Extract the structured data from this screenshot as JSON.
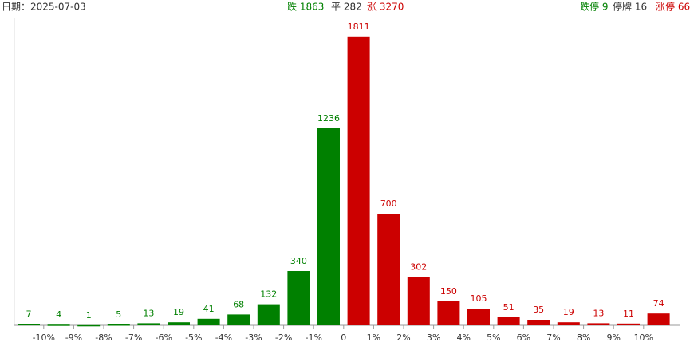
{
  "chart_data": {
    "type": "bar",
    "header": {
      "date": "日期：2025-07-03",
      "down": "跌 1863",
      "flat": "平 282",
      "up": "涨 3270",
      "limit_down": "跌停 9",
      "suspended": "停牌 16",
      "limit_up": "涨停 66"
    },
    "values": [
      7,
      4,
      1,
      5,
      13,
      19,
      41,
      68,
      132,
      340,
      1236,
      1811,
      700,
      302,
      150,
      105,
      51,
      35,
      19,
      13,
      11,
      74
    ],
    "colors": [
      "#008000",
      "#008000",
      "#008000",
      "#008000",
      "#008000",
      "#008000",
      "#008000",
      "#008000",
      "#008000",
      "#008000",
      "#008000",
      "#cc0000",
      "#cc0000",
      "#cc0000",
      "#cc0000",
      "#cc0000",
      "#cc0000",
      "#cc0000",
      "#cc0000",
      "#cc0000",
      "#cc0000",
      "#cc0000"
    ],
    "xticks": [
      "-10%",
      "-9%",
      "-8%",
      "-7%",
      "-6%",
      "-5%",
      "-4%",
      "-3%",
      "-2%",
      "-1%",
      "0",
      "1%",
      "2%",
      "3%",
      "4%",
      "5%",
      "6%",
      "7%",
      "8%",
      "9%",
      "10%"
    ],
    "ylim": [
      0,
      2000
    ]
  }
}
